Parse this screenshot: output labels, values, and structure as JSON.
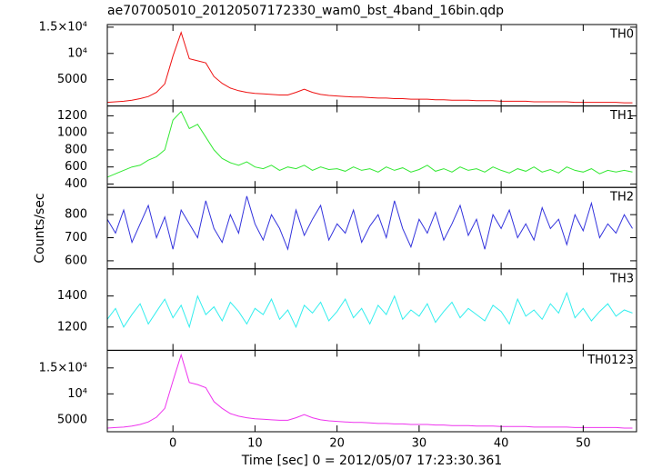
{
  "chart_data": [
    {
      "type": "line",
      "title": "ae707005010_20120507172330_wam0_bst_4band_16bin.qdp",
      "x": [
        -8,
        -7,
        -6,
        -5,
        -4,
        -3,
        -2,
        -1,
        0,
        1,
        2,
        3,
        4,
        5,
        6,
        7,
        8,
        9,
        10,
        11,
        12,
        13,
        14,
        15,
        16,
        17,
        18,
        19,
        20,
        21,
        22,
        23,
        24,
        25,
        26,
        27,
        28,
        29,
        30,
        31,
        32,
        33,
        34,
        35,
        36,
        37,
        38,
        39,
        40,
        41,
        42,
        43,
        44,
        45,
        46,
        47,
        48,
        49,
        50,
        51,
        52,
        53,
        54,
        55,
        56
      ],
      "series": [
        {
          "name": "TH0",
          "color": "#ee1111",
          "values": [
            700,
            800,
            900,
            1100,
            1400,
            1800,
            2600,
            4200,
            9500,
            14000,
            9000,
            8600,
            8200,
            5600,
            4300,
            3400,
            2900,
            2600,
            2400,
            2300,
            2200,
            2100,
            2100,
            2600,
            3200,
            2600,
            2200,
            2000,
            1900,
            1800,
            1700,
            1700,
            1600,
            1500,
            1500,
            1400,
            1400,
            1300,
            1300,
            1300,
            1200,
            1200,
            1100,
            1100,
            1100,
            1000,
            1000,
            1000,
            900,
            900,
            900,
            900,
            800,
            800,
            800,
            800,
            800,
            700,
            700,
            700,
            700,
            700,
            700,
            600,
            600
          ]
        }
      ],
      "xlim": [
        -8,
        56.5
      ],
      "xticks": [
        0,
        10,
        20,
        30,
        40,
        50
      ],
      "ylim": [
        0,
        15500
      ],
      "yticks": [
        {
          "value": 15000,
          "label": "1.5×10⁴"
        },
        {
          "value": 10000,
          "label": "10⁴"
        },
        5000
      ]
    },
    {
      "type": "line",
      "x": [
        -8,
        -7,
        -6,
        -5,
        -4,
        -3,
        -2,
        -1,
        0,
        1,
        2,
        3,
        4,
        5,
        6,
        7,
        8,
        9,
        10,
        11,
        12,
        13,
        14,
        15,
        16,
        17,
        18,
        19,
        20,
        21,
        22,
        23,
        24,
        25,
        26,
        27,
        28,
        29,
        30,
        31,
        32,
        33,
        34,
        35,
        36,
        37,
        38,
        39,
        40,
        41,
        42,
        43,
        44,
        45,
        46,
        47,
        48,
        49,
        50,
        51,
        52,
        53,
        54,
        55,
        56
      ],
      "series": [
        {
          "name": "TH1",
          "color": "#33e833",
          "values": [
            480,
            520,
            560,
            600,
            620,
            680,
            720,
            800,
            1150,
            1250,
            1050,
            1100,
            950,
            800,
            700,
            650,
            620,
            660,
            600,
            580,
            620,
            560,
            600,
            580,
            620,
            560,
            600,
            570,
            580,
            550,
            600,
            560,
            580,
            540,
            600,
            560,
            590,
            540,
            570,
            620,
            550,
            580,
            540,
            600,
            560,
            580,
            540,
            600,
            560,
            530,
            580,
            550,
            600,
            540,
            570,
            530,
            600,
            560,
            540,
            580,
            520,
            560,
            540,
            560,
            540
          ]
        }
      ],
      "xlim": [
        -8,
        56.5
      ],
      "xticks": [
        0,
        10,
        20,
        30,
        40,
        50
      ],
      "ylim": [
        360,
        1315
      ],
      "yticks": [
        1200,
        1000,
        800,
        600,
        400
      ]
    },
    {
      "type": "line",
      "ylabel": "Counts/sec",
      "x": [
        -8,
        -7,
        -6,
        -5,
        -4,
        -3,
        -2,
        -1,
        0,
        1,
        2,
        3,
        4,
        5,
        6,
        7,
        8,
        9,
        10,
        11,
        12,
        13,
        14,
        15,
        16,
        17,
        18,
        19,
        20,
        21,
        22,
        23,
        24,
        25,
        26,
        27,
        28,
        29,
        30,
        31,
        32,
        33,
        34,
        35,
        36,
        37,
        38,
        39,
        40,
        41,
        42,
        43,
        44,
        45,
        46,
        47,
        48,
        49,
        50,
        51,
        52,
        53,
        54,
        55,
        56
      ],
      "series": [
        {
          "name": "TH2",
          "color": "#3333dd",
          "values": [
            780,
            720,
            820,
            680,
            760,
            840,
            700,
            790,
            650,
            820,
            760,
            700,
            860,
            740,
            680,
            800,
            720,
            880,
            760,
            690,
            800,
            740,
            650,
            820,
            710,
            780,
            840,
            690,
            760,
            720,
            820,
            680,
            750,
            800,
            700,
            860,
            740,
            660,
            780,
            720,
            810,
            690,
            760,
            840,
            710,
            780,
            650,
            800,
            740,
            820,
            700,
            760,
            690,
            830,
            740,
            780,
            670,
            800,
            730,
            850,
            700,
            760,
            720,
            800,
            740
          ]
        }
      ],
      "xlim": [
        -8,
        56.5
      ],
      "xticks": [
        0,
        10,
        20,
        30,
        40,
        50
      ],
      "ylim": [
        565,
        918
      ],
      "yticks": [
        800,
        700,
        600
      ]
    },
    {
      "type": "line",
      "x": [
        -8,
        -7,
        -6,
        -5,
        -4,
        -3,
        -2,
        -1,
        0,
        1,
        2,
        3,
        4,
        5,
        6,
        7,
        8,
        9,
        10,
        11,
        12,
        13,
        14,
        15,
        16,
        17,
        18,
        19,
        20,
        21,
        22,
        23,
        24,
        25,
        26,
        27,
        28,
        29,
        30,
        31,
        32,
        33,
        34,
        35,
        36,
        37,
        38,
        39,
        40,
        41,
        42,
        43,
        44,
        45,
        46,
        47,
        48,
        49,
        50,
        51,
        52,
        53,
        54,
        55,
        56
      ],
      "series": [
        {
          "name": "TH3",
          "color": "#33eeee",
          "values": [
            1250,
            1320,
            1200,
            1280,
            1350,
            1220,
            1300,
            1380,
            1260,
            1340,
            1200,
            1400,
            1280,
            1330,
            1240,
            1360,
            1300,
            1220,
            1320,
            1280,
            1380,
            1250,
            1310,
            1200,
            1340,
            1290,
            1360,
            1240,
            1300,
            1380,
            1260,
            1320,
            1220,
            1340,
            1280,
            1400,
            1250,
            1310,
            1270,
            1350,
            1230,
            1300,
            1360,
            1260,
            1320,
            1280,
            1240,
            1340,
            1300,
            1220,
            1380,
            1270,
            1310,
            1250,
            1350,
            1290,
            1420,
            1260,
            1320,
            1240,
            1300,
            1350,
            1270,
            1310,
            1290
          ]
        }
      ],
      "xlim": [
        -8,
        56.5
      ],
      "xticks": [
        0,
        10,
        20,
        30,
        40,
        50
      ],
      "ylim": [
        1050,
        1575
      ],
      "yticks": [
        1400,
        1200
      ]
    },
    {
      "type": "line",
      "xlabel": "Time [sec] 0 = 2012/05/07 17:23:30.361",
      "x": [
        -8,
        -7,
        -6,
        -5,
        -4,
        -3,
        -2,
        -1,
        0,
        1,
        2,
        3,
        4,
        5,
        6,
        7,
        8,
        9,
        10,
        11,
        12,
        13,
        14,
        15,
        16,
        17,
        18,
        19,
        20,
        21,
        22,
        23,
        24,
        25,
        26,
        27,
        28,
        29,
        30,
        31,
        32,
        33,
        34,
        35,
        36,
        37,
        38,
        39,
        40,
        41,
        42,
        43,
        44,
        45,
        46,
        47,
        48,
        49,
        50,
        51,
        52,
        53,
        54,
        55,
        56
      ],
      "series": [
        {
          "name": "TH0123",
          "color": "#ee33ee",
          "values": [
            3400,
            3500,
            3600,
            3800,
            4100,
            4600,
            5500,
            7200,
            12500,
            17500,
            12200,
            11800,
            11200,
            8500,
            7200,
            6200,
            5700,
            5400,
            5200,
            5100,
            5000,
            4900,
            4900,
            5400,
            6000,
            5400,
            5000,
            4800,
            4700,
            4600,
            4500,
            4500,
            4400,
            4300,
            4300,
            4200,
            4200,
            4100,
            4100,
            4100,
            4000,
            4000,
            3900,
            3900,
            3900,
            3800,
            3800,
            3800,
            3700,
            3700,
            3700,
            3700,
            3600,
            3600,
            3600,
            3600,
            3600,
            3500,
            3500,
            3500,
            3500,
            3500,
            3500,
            3400,
            3400
          ]
        }
      ],
      "xlim": [
        -8,
        56.5
      ],
      "xticks": [
        0,
        10,
        20,
        30,
        40,
        50
      ],
      "ylim": [
        2700,
        18400
      ],
      "yticks": [
        {
          "value": 15000,
          "label": "1.5×10⁴"
        },
        {
          "value": 10000,
          "label": "10⁴"
        },
        5000
      ]
    }
  ]
}
